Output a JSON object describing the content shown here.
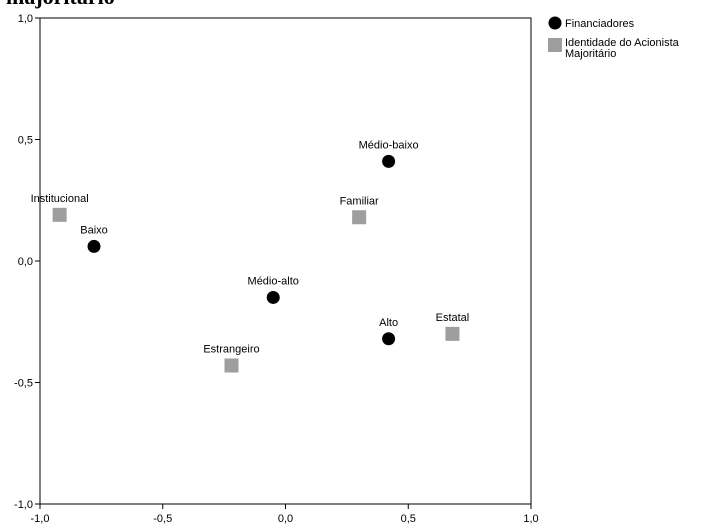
{
  "page": {
    "title_fragment": "majoritário"
  },
  "chart_data": {
    "type": "scatter",
    "title": "",
    "xlabel": "",
    "ylabel": "",
    "xlim": [
      -1.0,
      1.0
    ],
    "ylim": [
      -1.0,
      1.0
    ],
    "x_ticks": [
      -1.0,
      -0.5,
      0.0,
      0.5,
      1.0
    ],
    "x_tick_labels": [
      "-1,0",
      "-0,5",
      "0,0",
      "0,5",
      "1,0"
    ],
    "y_ticks": [
      -1.0,
      -0.5,
      0.0,
      0.5,
      1.0
    ],
    "y_tick_labels": [
      "-1,0",
      "-0,5",
      "0,0",
      "0,5",
      "1,0"
    ],
    "grid": false,
    "legend_position": "top-right, outside plot",
    "series": [
      {
        "name": "Financiadores",
        "marker": "circle",
        "color": "#000000",
        "points": [
          {
            "label": "Médio-baixo",
            "x": 0.42,
            "y": 0.41
          },
          {
            "label": "Baixo",
            "x": -0.78,
            "y": 0.06
          },
          {
            "label": "Médio-alto",
            "x": -0.05,
            "y": -0.15
          },
          {
            "label": "Alto",
            "x": 0.42,
            "y": -0.32
          }
        ]
      },
      {
        "name": "Identidade do Acionista Majoritário",
        "legend_lines": [
          "Identidade do Acionista",
          "Majoritário"
        ],
        "marker": "square",
        "color": "#9e9e9e",
        "points": [
          {
            "label": "Institucional",
            "x": -0.92,
            "y": 0.19
          },
          {
            "label": "Familiar",
            "x": 0.3,
            "y": 0.18
          },
          {
            "label": "Estrangeiro",
            "x": -0.22,
            "y": -0.43
          },
          {
            "label": "Estatal",
            "x": 0.68,
            "y": -0.3
          }
        ]
      }
    ]
  }
}
